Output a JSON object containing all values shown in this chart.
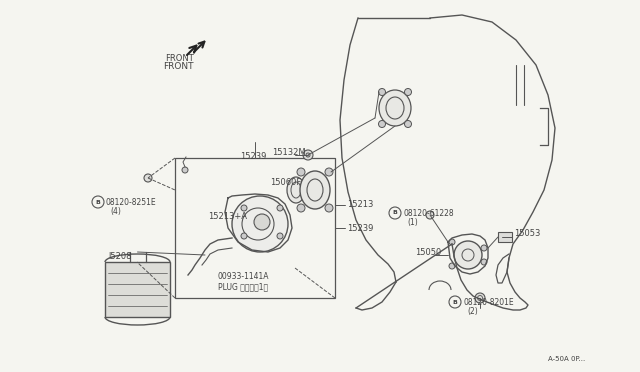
{
  "bg_color": "#f5f5f0",
  "line_color": "#555555",
  "text_color": "#444444",
  "fig_width": 6.4,
  "fig_height": 3.72,
  "dpi": 100,
  "labels": {
    "front": "FRONT",
    "l15132M": "15132M",
    "l15239a": "15239",
    "l15060F": "15060F",
    "l15213a": "15213+A",
    "l15213b": "15213",
    "l15239b": "15239",
    "l15208": "l5208",
    "l00933": "00933-1141A",
    "lplug": "PLUG プラグ（1）",
    "l08120_8251E": "08120-8251E",
    "l08120_8251E_sub": "(4)",
    "l08120_61228": "08120-61228",
    "l08120_61228_sub": "(1)",
    "l08120_8201E": "08120-8201E",
    "l08120_8201E_sub": "(2)",
    "l15053": "15053",
    "l15050": "15050",
    "lserial": "A-50A 0P..."
  }
}
